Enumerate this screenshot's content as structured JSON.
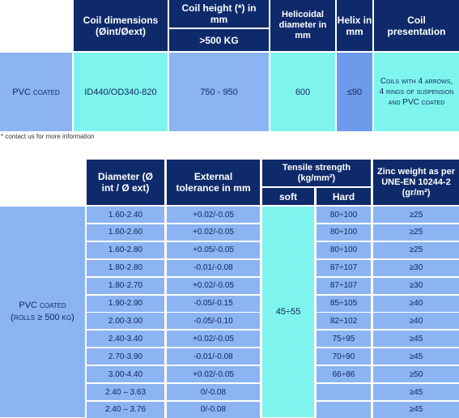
{
  "coil_table": {
    "headers": {
      "coil_dimensions": "Coil dimensions (Øint/Øext)",
      "coil_height": "Coil height (*) in mm",
      "coil_height_sub": ">500 KG",
      "helicoidal_diameter": "Helicoidal diameter in mm",
      "helix": "Helix in mm",
      "coil_presentation": "Coil presentation"
    },
    "row": {
      "type": "PVC coated",
      "dimensions": "ID440/OD340-820",
      "height": "750 - 950",
      "helicoidal_diameter": "600",
      "helix": "≤90",
      "presentation": "Coils with 4 arrows, 4 rings of suspension and PVC coated"
    },
    "note": "* contact us for more information"
  },
  "wire_table": {
    "headers": {
      "diameter": "Diameter (Ø int / Ø ext)",
      "tolerance": "External tolerance in mm",
      "tensile": "Tensile strength (kg/mm²)",
      "soft": "soft",
      "hard": "Hard",
      "zinc": "Zinc weight as per UNE-EN 10244-2 (gr/m²)"
    },
    "row_label": "PVC coated (rolls ≥ 500 kg)",
    "soft_value": "45÷55",
    "rows": [
      {
        "diameter": "1.60-2.40",
        "tolerance": "+0.02/-0.05",
        "hard": "80÷100",
        "zinc": "≥25"
      },
      {
        "diameter": "1.60-2.60",
        "tolerance": "+0.02/-0.05",
        "hard": "80÷100",
        "zinc": "≥25"
      },
      {
        "diameter": "1.60-2.80",
        "tolerance": "+0.05/-0.05",
        "hard": "80÷100",
        "zinc": "≥25"
      },
      {
        "diameter": "1.80-2.80",
        "tolerance": "-0.01/-0.08",
        "hard": "87÷107",
        "zinc": "≥30"
      },
      {
        "diameter": "1.80-2.70",
        "tolerance": "+0.02/-0.05",
        "hard": "87÷107",
        "zinc": "≥30"
      },
      {
        "diameter": "1.90-2.90",
        "tolerance": "-0.05/-0.15",
        "hard": "85÷105",
        "zinc": "≥40"
      },
      {
        "diameter": "2.00-3.00",
        "tolerance": "-0.05/-0.10",
        "hard": "82÷102",
        "zinc": "≥40"
      },
      {
        "diameter": "2.40-3.40",
        "tolerance": "+0.02/-0.05",
        "hard": "75÷95",
        "zinc": "≥45"
      },
      {
        "diameter": "2.70-3.90",
        "tolerance": "-0.01/-0.08",
        "hard": "70÷90",
        "zinc": "≥45"
      },
      {
        "diameter": "3.00-4.40",
        "tolerance": "+0.02/-0.05",
        "hard": "66÷86",
        "zinc": "≥50"
      },
      {
        "diameter": "2.40 – 3.63",
        "tolerance": "0/-0.08",
        "hard": "",
        "zinc": "≥45"
      },
      {
        "diameter": "2.40 – 3.76",
        "tolerance": "0/-0.08",
        "hard": "",
        "zinc": "≥45"
      }
    ]
  },
  "colors": {
    "header": "#0e2a6b",
    "light_blue": "#8cb4f2",
    "cyan": "#7ff4ef",
    "medium_blue": "#6d9bec"
  }
}
